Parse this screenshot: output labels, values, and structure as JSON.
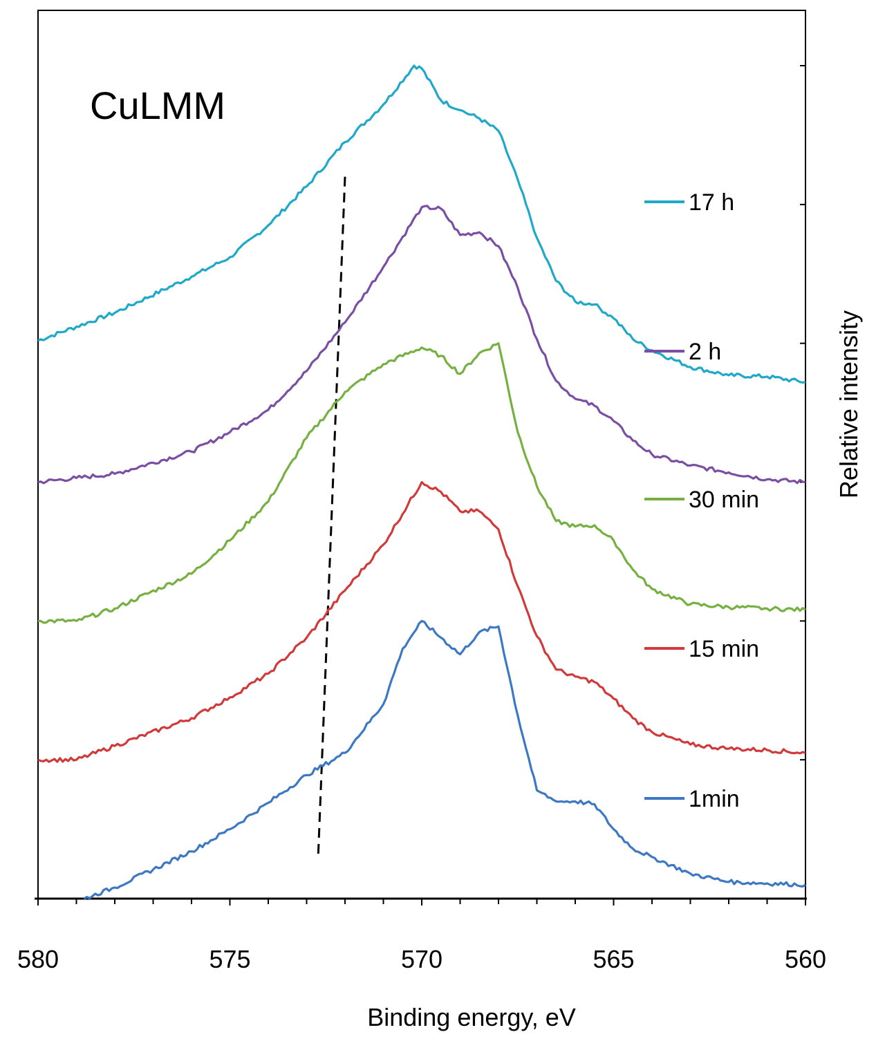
{
  "chart_data": {
    "type": "line",
    "title": "",
    "annotation": "CuLMM",
    "xlabel": "Binding energy, eV",
    "ylabel": "Relative intensity",
    "xlim": [
      580,
      560
    ],
    "ylim": [
      0,
      6.05
    ],
    "x_ticks": [
      "580",
      "575",
      "570",
      "565",
      "560"
    ],
    "x_tick_values": [
      580,
      575,
      570,
      565,
      560
    ],
    "legend": [
      "17  h",
      "2 h",
      "30 min",
      "15 min",
      "1min"
    ],
    "series": [
      {
        "name": "17  h",
        "color": "#1fa8c8",
        "x": [
          580,
          578,
          576,
          575,
          574,
          573,
          572,
          571,
          570.2,
          570,
          569.5,
          569,
          568.5,
          568,
          567.5,
          567,
          566.5,
          566,
          565.5,
          565,
          564.5,
          564,
          563,
          562,
          561,
          560
        ],
        "y": [
          4.02,
          4.22,
          4.48,
          4.62,
          4.85,
          5.13,
          5.45,
          5.72,
          6.0,
          5.98,
          5.75,
          5.68,
          5.62,
          5.53,
          5.18,
          4.76,
          4.45,
          4.3,
          4.28,
          4.18,
          4.03,
          3.95,
          3.83,
          3.77,
          3.76,
          3.72
        ]
      },
      {
        "name": "2 h",
        "color": "#7a4fa3",
        "x": [
          580,
          579,
          578,
          576,
          575,
          574,
          573,
          572,
          571,
          570,
          569.5,
          569,
          568.5,
          568,
          567.5,
          567,
          566.5,
          566,
          565.5,
          565,
          564.5,
          564,
          563,
          562,
          561,
          560
        ],
        "y": [
          3.0,
          3.03,
          3.06,
          3.22,
          3.36,
          3.52,
          3.8,
          4.15,
          4.55,
          4.98,
          4.97,
          4.78,
          4.8,
          4.7,
          4.4,
          4.03,
          3.73,
          3.6,
          3.55,
          3.44,
          3.3,
          3.2,
          3.12,
          3.07,
          3.02,
          3.0
        ]
      },
      {
        "name": "30 min",
        "color": "#76b041",
        "x": [
          580,
          579,
          578,
          576,
          575,
          574,
          573,
          572,
          571,
          570,
          569.5,
          569,
          568.5,
          568,
          567.5,
          567,
          566.5,
          566,
          565.5,
          565,
          564.5,
          564,
          563,
          562,
          561,
          560
        ],
        "y": [
          2.0,
          2.0,
          2.09,
          2.34,
          2.58,
          2.86,
          3.32,
          3.65,
          3.85,
          3.97,
          3.91,
          3.78,
          3.93,
          4.0,
          3.36,
          2.97,
          2.72,
          2.68,
          2.69,
          2.58,
          2.37,
          2.23,
          2.12,
          2.1,
          2.09,
          2.08
        ]
      },
      {
        "name": "15 min",
        "color": "#d03a3a",
        "x": [
          580,
          579,
          578,
          576,
          575,
          574,
          573,
          572,
          571,
          570,
          569.5,
          569,
          568.5,
          568,
          567.5,
          567,
          566.5,
          566,
          565.5,
          565,
          564.5,
          564,
          563,
          562,
          561,
          560
        ],
        "y": [
          1.0,
          1.0,
          1.1,
          1.3,
          1.45,
          1.62,
          1.88,
          2.22,
          2.55,
          3.0,
          2.93,
          2.79,
          2.79,
          2.66,
          2.25,
          1.89,
          1.65,
          1.6,
          1.56,
          1.44,
          1.3,
          1.2,
          1.11,
          1.08,
          1.07,
          1.05
        ]
      },
      {
        "name": "1min",
        "color": "#3c78c3",
        "x": [
          578.8,
          578,
          576,
          575,
          574,
          573,
          572,
          571,
          570.5,
          570,
          569.5,
          569,
          568.5,
          568,
          567.5,
          567,
          566.5,
          566,
          565.5,
          565,
          564.5,
          564,
          563,
          562,
          561,
          560
        ],
        "y": [
          0.0,
          0.08,
          0.34,
          0.5,
          0.69,
          0.89,
          1.05,
          1.4,
          1.8,
          2.0,
          1.88,
          1.76,
          1.92,
          1.96,
          1.32,
          0.78,
          0.7,
          0.7,
          0.68,
          0.5,
          0.36,
          0.3,
          0.18,
          0.12,
          0.11,
          0.1
        ]
      }
    ],
    "guide_line": {
      "style": "dashed",
      "color": "#000000",
      "x": [
        572.0,
        572.7
      ],
      "y": [
        5.2,
        0.3
      ]
    },
    "grid": false,
    "legend_position": "right"
  }
}
